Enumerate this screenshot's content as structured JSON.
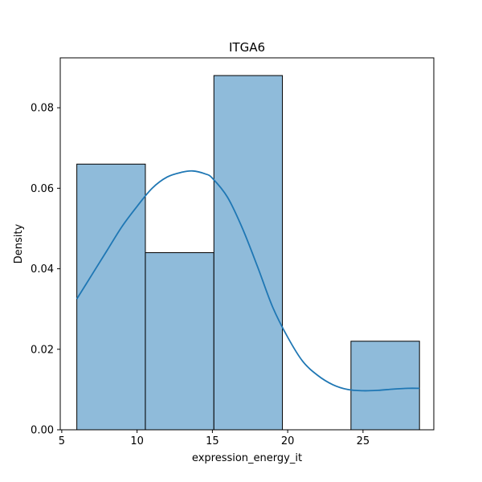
{
  "chart_data": {
    "type": "bar",
    "subtype": "histogram_with_kde",
    "title": "ITGA6",
    "xlabel": "expression_energy_it",
    "ylabel": "Density",
    "xlim": [
      4.9,
      29.7
    ],
    "ylim": [
      0,
      0.0924
    ],
    "xticks": [
      5,
      10,
      15,
      20,
      25
    ],
    "yticks": [
      0.0,
      0.02,
      0.04,
      0.06,
      0.08
    ],
    "ytick_labels": [
      "0.00",
      "0.02",
      "0.04",
      "0.06",
      "0.08"
    ],
    "bins": [
      {
        "x0": 6.0,
        "x1": 10.55,
        "density": 0.066
      },
      {
        "x0": 10.55,
        "x1": 15.1,
        "density": 0.044
      },
      {
        "x0": 15.1,
        "x1": 19.65,
        "density": 0.088
      },
      {
        "x0": 19.65,
        "x1": 24.2,
        "density": 0.0
      },
      {
        "x0": 24.2,
        "x1": 28.75,
        "density": 0.022
      }
    ],
    "kde": {
      "x": [
        6.0,
        7.0,
        8.0,
        9.0,
        10.0,
        11.0,
        12.0,
        13.0,
        13.7,
        14.5,
        15.0,
        16.0,
        17.0,
        18.0,
        19.0,
        20.0,
        21.0,
        22.0,
        23.0,
        24.0,
        25.0,
        26.0,
        27.0,
        28.0,
        28.75
      ],
      "y": [
        0.0325,
        0.0385,
        0.0445,
        0.0505,
        0.0555,
        0.06,
        0.0628,
        0.064,
        0.0643,
        0.0636,
        0.0625,
        0.0578,
        0.05,
        0.0405,
        0.0305,
        0.023,
        0.017,
        0.0135,
        0.0112,
        0.01,
        0.0097,
        0.0098,
        0.0101,
        0.0103,
        0.0103
      ]
    },
    "colors": {
      "bar_fill": "#8fbbda",
      "bar_edge": "#000000",
      "kde_line": "#1f77b4"
    },
    "grid": false,
    "legend": "none"
  }
}
